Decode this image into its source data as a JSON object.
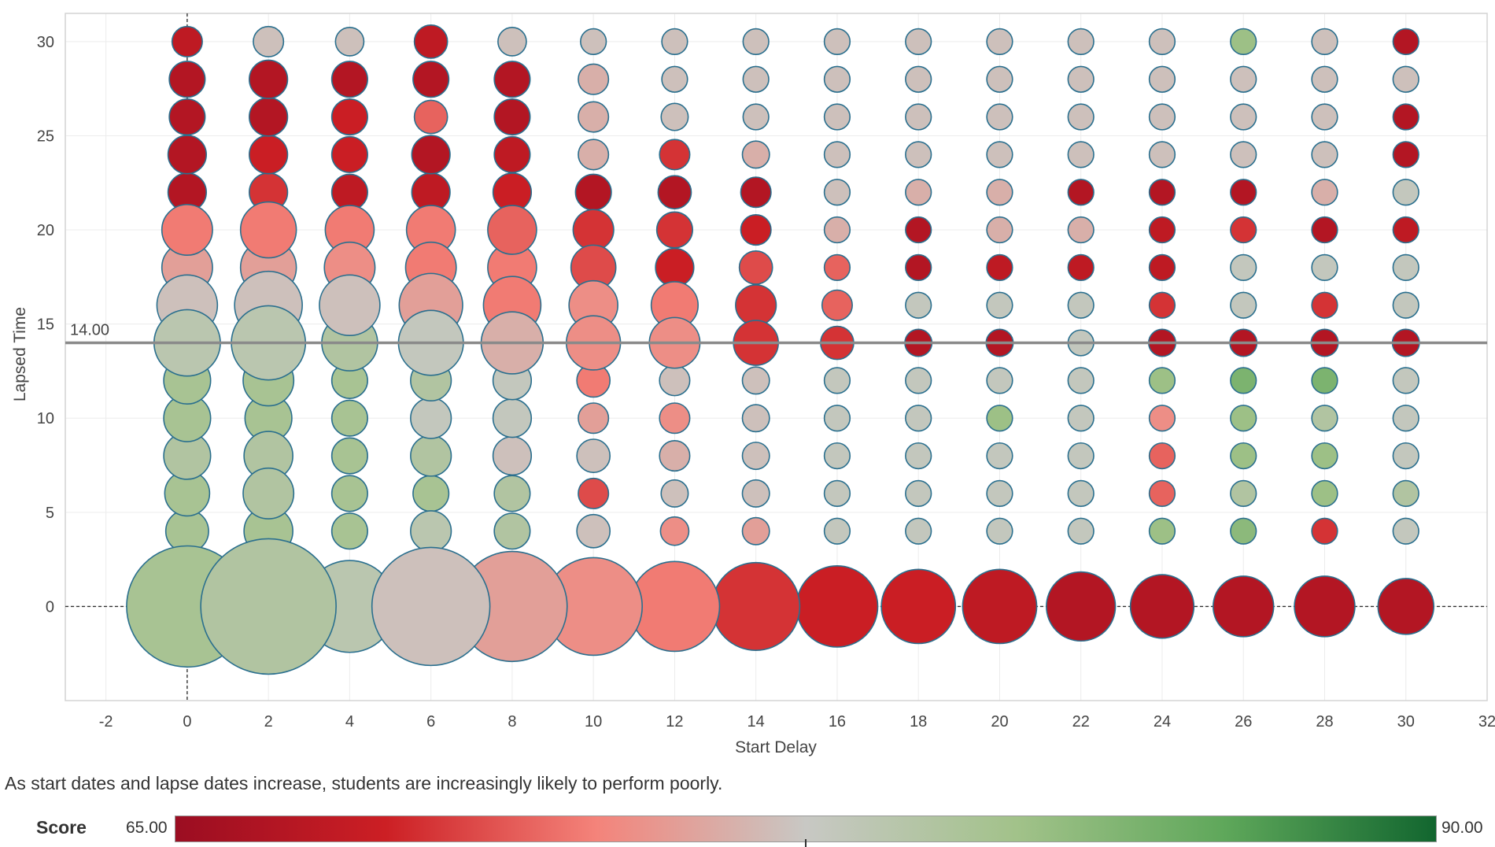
{
  "chart_data": {
    "type": "scatter",
    "subtype": "bubble",
    "xlabel": "Start Delay",
    "ylabel": "Lapsed Time",
    "xlim": [
      -3,
      32
    ],
    "ylim": [
      -5,
      31.5
    ],
    "x_ticks": [
      -2,
      0,
      2,
      4,
      6,
      8,
      10,
      12,
      14,
      16,
      18,
      20,
      22,
      24,
      26,
      28,
      30,
      32
    ],
    "y_ticks": [
      0,
      5,
      10,
      15,
      20,
      25,
      30
    ],
    "grid": true,
    "reference_line": {
      "axis": "y",
      "value": 14,
      "label": "14.00"
    },
    "zero_lines": {
      "x": 0,
      "y": 0,
      "style": "dashed"
    },
    "color": {
      "field": "Score",
      "min": 65,
      "max": 90,
      "stops": [
        "#9b0d22",
        "#cc1f24",
        "#f4837a",
        "#c8c8c4",
        "#a2c28a",
        "#5ea75a",
        "#12662f"
      ]
    },
    "size_field": "relative count (0-1)",
    "points_columns": [
      "start_delay",
      "lapsed_time",
      "score",
      "size"
    ],
    "points": [
      [
        0,
        0,
        81,
        0.4
      ],
      [
        2,
        0,
        80,
        0.5
      ],
      [
        4,
        0,
        79,
        0.23
      ],
      [
        6,
        0,
        77,
        0.38
      ],
      [
        8,
        0,
        75,
        0.33
      ],
      [
        10,
        0,
        74,
        0.26
      ],
      [
        12,
        0,
        73,
        0.22
      ],
      [
        14,
        0,
        70,
        0.21
      ],
      [
        16,
        0,
        69,
        0.18
      ],
      [
        18,
        0,
        69,
        0.15
      ],
      [
        20,
        0,
        68,
        0.15
      ],
      [
        22,
        0,
        67,
        0.13
      ],
      [
        24,
        0,
        67,
        0.11
      ],
      [
        26,
        0,
        67,
        0.1
      ],
      [
        28,
        0,
        67,
        0.1
      ],
      [
        30,
        0,
        67,
        0.085
      ],
      [
        0,
        4,
        81,
        0.05
      ],
      [
        2,
        4,
        81,
        0.065
      ],
      [
        4,
        4,
        81,
        0.035
      ],
      [
        6,
        4,
        79,
        0.045
      ],
      [
        8,
        4,
        80,
        0.035
      ],
      [
        10,
        4,
        77,
        0.03
      ],
      [
        12,
        4,
        74,
        0.022
      ],
      [
        14,
        4,
        75,
        0.02
      ],
      [
        16,
        4,
        78,
        0.018
      ],
      [
        18,
        4,
        78,
        0.018
      ],
      [
        20,
        4,
        78,
        0.018
      ],
      [
        22,
        4,
        78,
        0.018
      ],
      [
        24,
        4,
        82,
        0.018
      ],
      [
        26,
        4,
        83,
        0.018
      ],
      [
        28,
        4,
        70,
        0.018
      ],
      [
        30,
        4,
        78,
        0.018
      ],
      [
        0,
        6,
        81,
        0.055
      ],
      [
        2,
        6,
        80,
        0.07
      ],
      [
        4,
        6,
        81,
        0.035
      ],
      [
        6,
        6,
        81,
        0.035
      ],
      [
        8,
        6,
        80,
        0.035
      ],
      [
        10,
        6,
        71,
        0.025
      ],
      [
        12,
        6,
        77,
        0.02
      ],
      [
        14,
        6,
        77,
        0.02
      ],
      [
        16,
        6,
        78,
        0.018
      ],
      [
        18,
        6,
        78,
        0.018
      ],
      [
        20,
        6,
        78,
        0.018
      ],
      [
        22,
        6,
        78,
        0.018
      ],
      [
        24,
        6,
        72,
        0.018
      ],
      [
        26,
        6,
        80,
        0.018
      ],
      [
        28,
        6,
        82,
        0.018
      ],
      [
        30,
        6,
        80,
        0.018
      ],
      [
        0,
        8,
        80,
        0.06
      ],
      [
        2,
        8,
        80,
        0.065
      ],
      [
        4,
        8,
        81,
        0.035
      ],
      [
        6,
        8,
        80,
        0.045
      ],
      [
        8,
        8,
        77,
        0.04
      ],
      [
        10,
        8,
        77,
        0.03
      ],
      [
        12,
        8,
        76,
        0.025
      ],
      [
        14,
        8,
        77,
        0.02
      ],
      [
        16,
        8,
        78,
        0.018
      ],
      [
        18,
        8,
        78,
        0.018
      ],
      [
        20,
        8,
        78,
        0.018
      ],
      [
        22,
        8,
        78,
        0.018
      ],
      [
        24,
        8,
        72,
        0.018
      ],
      [
        26,
        8,
        82,
        0.018
      ],
      [
        28,
        8,
        82,
        0.018
      ],
      [
        30,
        8,
        78,
        0.018
      ],
      [
        0,
        10,
        81,
        0.06
      ],
      [
        2,
        10,
        81,
        0.06
      ],
      [
        4,
        10,
        81,
        0.035
      ],
      [
        6,
        10,
        78,
        0.045
      ],
      [
        8,
        10,
        78,
        0.04
      ],
      [
        10,
        10,
        75,
        0.025
      ],
      [
        12,
        10,
        74,
        0.025
      ],
      [
        14,
        10,
        77,
        0.02
      ],
      [
        16,
        10,
        78,
        0.018
      ],
      [
        18,
        10,
        78,
        0.018
      ],
      [
        20,
        10,
        82,
        0.018
      ],
      [
        22,
        10,
        78,
        0.018
      ],
      [
        24,
        10,
        74,
        0.018
      ],
      [
        26,
        10,
        82,
        0.018
      ],
      [
        28,
        10,
        80,
        0.018
      ],
      [
        30,
        10,
        78,
        0.018
      ],
      [
        0,
        12,
        81,
        0.06
      ],
      [
        2,
        12,
        81,
        0.07
      ],
      [
        4,
        12,
        81,
        0.035
      ],
      [
        6,
        12,
        80,
        0.045
      ],
      [
        8,
        12,
        78,
        0.04
      ],
      [
        10,
        12,
        73,
        0.03
      ],
      [
        12,
        12,
        77,
        0.025
      ],
      [
        14,
        12,
        77,
        0.02
      ],
      [
        16,
        12,
        78,
        0.018
      ],
      [
        18,
        12,
        78,
        0.018
      ],
      [
        20,
        12,
        78,
        0.018
      ],
      [
        22,
        12,
        78,
        0.018
      ],
      [
        24,
        12,
        82,
        0.018
      ],
      [
        26,
        12,
        84,
        0.018
      ],
      [
        28,
        12,
        84,
        0.018
      ],
      [
        30,
        12,
        78,
        0.018
      ],
      [
        0,
        14,
        79,
        0.12
      ],
      [
        2,
        14,
        79,
        0.15
      ],
      [
        4,
        14,
        80,
        0.085
      ],
      [
        6,
        14,
        78,
        0.115
      ],
      [
        8,
        14,
        76,
        0.105
      ],
      [
        10,
        14,
        74,
        0.08
      ],
      [
        12,
        14,
        74,
        0.07
      ],
      [
        14,
        14,
        70,
        0.055
      ],
      [
        16,
        14,
        70,
        0.03
      ],
      [
        18,
        14,
        67,
        0.02
      ],
      [
        20,
        14,
        67,
        0.02
      ],
      [
        22,
        14,
        78,
        0.018
      ],
      [
        24,
        14,
        67,
        0.02
      ],
      [
        26,
        14,
        67,
        0.02
      ],
      [
        28,
        14,
        67,
        0.02
      ],
      [
        30,
        14,
        67,
        0.02
      ],
      [
        0,
        16,
        77,
        0.1
      ],
      [
        2,
        16,
        77,
        0.125
      ],
      [
        4,
        16,
        77,
        0.1
      ],
      [
        6,
        16,
        75,
        0.11
      ],
      [
        8,
        16,
        73,
        0.09
      ],
      [
        10,
        16,
        74,
        0.065
      ],
      [
        12,
        16,
        73,
        0.06
      ],
      [
        14,
        16,
        70,
        0.045
      ],
      [
        16,
        16,
        72,
        0.025
      ],
      [
        18,
        16,
        78,
        0.018
      ],
      [
        20,
        16,
        78,
        0.018
      ],
      [
        22,
        16,
        78,
        0.018
      ],
      [
        24,
        16,
        70,
        0.018
      ],
      [
        26,
        16,
        78,
        0.018
      ],
      [
        28,
        16,
        70,
        0.018
      ],
      [
        30,
        16,
        78,
        0.018
      ],
      [
        0,
        18,
        75,
        0.07
      ],
      [
        2,
        18,
        75,
        0.085
      ],
      [
        4,
        18,
        74,
        0.07
      ],
      [
        6,
        18,
        73,
        0.07
      ],
      [
        8,
        18,
        73,
        0.065
      ],
      [
        10,
        18,
        71,
        0.055
      ],
      [
        12,
        18,
        69,
        0.04
      ],
      [
        14,
        18,
        71,
        0.03
      ],
      [
        16,
        18,
        72,
        0.018
      ],
      [
        18,
        18,
        67,
        0.018
      ],
      [
        20,
        18,
        68,
        0.018
      ],
      [
        22,
        18,
        68,
        0.018
      ],
      [
        24,
        18,
        68,
        0.018
      ],
      [
        26,
        18,
        78,
        0.018
      ],
      [
        28,
        18,
        78,
        0.018
      ],
      [
        30,
        18,
        78,
        0.018
      ],
      [
        0,
        20,
        73,
        0.07
      ],
      [
        2,
        20,
        73,
        0.085
      ],
      [
        4,
        20,
        73,
        0.065
      ],
      [
        6,
        20,
        73,
        0.065
      ],
      [
        8,
        20,
        72,
        0.065
      ],
      [
        10,
        20,
        70,
        0.045
      ],
      [
        12,
        20,
        70,
        0.035
      ],
      [
        14,
        20,
        69,
        0.025
      ],
      [
        16,
        20,
        76,
        0.018
      ],
      [
        18,
        20,
        67,
        0.018
      ],
      [
        20,
        20,
        76,
        0.018
      ],
      [
        22,
        20,
        76,
        0.018
      ],
      [
        24,
        20,
        68,
        0.018
      ],
      [
        26,
        20,
        70,
        0.018
      ],
      [
        28,
        20,
        67,
        0.018
      ],
      [
        30,
        20,
        68,
        0.018
      ],
      [
        0,
        22,
        67,
        0.04
      ],
      [
        2,
        22,
        70,
        0.04
      ],
      [
        4,
        22,
        68,
        0.035
      ],
      [
        6,
        22,
        68,
        0.04
      ],
      [
        8,
        22,
        69,
        0.04
      ],
      [
        10,
        22,
        67,
        0.035
      ],
      [
        12,
        22,
        67,
        0.03
      ],
      [
        14,
        22,
        67,
        0.025
      ],
      [
        16,
        22,
        77,
        0.018
      ],
      [
        18,
        22,
        76,
        0.018
      ],
      [
        20,
        22,
        76,
        0.018
      ],
      [
        22,
        22,
        67,
        0.018
      ],
      [
        24,
        22,
        67,
        0.018
      ],
      [
        26,
        22,
        67,
        0.018
      ],
      [
        28,
        22,
        76,
        0.018
      ],
      [
        30,
        22,
        78,
        0.018
      ],
      [
        0,
        24,
        67,
        0.04
      ],
      [
        2,
        24,
        69,
        0.04
      ],
      [
        4,
        24,
        69,
        0.035
      ],
      [
        6,
        24,
        67,
        0.04
      ],
      [
        8,
        24,
        68,
        0.035
      ],
      [
        10,
        24,
        76,
        0.025
      ],
      [
        12,
        24,
        70,
        0.025
      ],
      [
        14,
        24,
        76,
        0.02
      ],
      [
        16,
        24,
        77,
        0.018
      ],
      [
        18,
        24,
        77,
        0.018
      ],
      [
        20,
        24,
        77,
        0.018
      ],
      [
        22,
        24,
        77,
        0.018
      ],
      [
        24,
        24,
        77,
        0.018
      ],
      [
        26,
        24,
        77,
        0.018
      ],
      [
        28,
        24,
        77,
        0.018
      ],
      [
        30,
        24,
        67,
        0.018
      ],
      [
        0,
        26,
        67,
        0.035
      ],
      [
        2,
        26,
        67,
        0.04
      ],
      [
        4,
        26,
        69,
        0.035
      ],
      [
        6,
        26,
        72,
        0.03
      ],
      [
        8,
        26,
        67,
        0.035
      ],
      [
        10,
        26,
        76,
        0.025
      ],
      [
        12,
        26,
        77,
        0.02
      ],
      [
        14,
        26,
        77,
        0.018
      ],
      [
        16,
        26,
        77,
        0.018
      ],
      [
        18,
        26,
        77,
        0.018
      ],
      [
        20,
        26,
        77,
        0.018
      ],
      [
        22,
        26,
        77,
        0.018
      ],
      [
        24,
        26,
        77,
        0.018
      ],
      [
        26,
        26,
        77,
        0.018
      ],
      [
        28,
        26,
        77,
        0.018
      ],
      [
        30,
        26,
        67,
        0.018
      ],
      [
        0,
        28,
        67,
        0.035
      ],
      [
        2,
        28,
        67,
        0.04
      ],
      [
        4,
        28,
        67,
        0.035
      ],
      [
        6,
        28,
        67,
        0.035
      ],
      [
        8,
        28,
        67,
        0.035
      ],
      [
        10,
        28,
        76,
        0.025
      ],
      [
        12,
        28,
        77,
        0.018
      ],
      [
        14,
        28,
        77,
        0.018
      ],
      [
        16,
        28,
        77,
        0.018
      ],
      [
        18,
        28,
        77,
        0.018
      ],
      [
        20,
        28,
        77,
        0.018
      ],
      [
        22,
        28,
        77,
        0.018
      ],
      [
        24,
        28,
        77,
        0.018
      ],
      [
        26,
        28,
        77,
        0.018
      ],
      [
        28,
        28,
        77,
        0.018
      ],
      [
        30,
        28,
        77,
        0.018
      ],
      [
        0,
        30,
        68,
        0.025
      ],
      [
        2,
        30,
        77,
        0.025
      ],
      [
        4,
        30,
        77,
        0.022
      ],
      [
        6,
        30,
        68,
        0.03
      ],
      [
        8,
        30,
        77,
        0.022
      ],
      [
        10,
        30,
        77,
        0.018
      ],
      [
        12,
        30,
        77,
        0.018
      ],
      [
        14,
        30,
        77,
        0.018
      ],
      [
        16,
        30,
        77,
        0.018
      ],
      [
        18,
        30,
        77,
        0.018
      ],
      [
        20,
        30,
        77,
        0.018
      ],
      [
        22,
        30,
        77,
        0.018
      ],
      [
        24,
        30,
        77,
        0.018
      ],
      [
        26,
        30,
        82,
        0.018
      ],
      [
        28,
        30,
        77,
        0.018
      ],
      [
        30,
        30,
        67,
        0.018
      ]
    ]
  },
  "caption": "As start dates and lapse dates increase, students are increasingly likely to perform poorly.",
  "legend": {
    "title": "Score",
    "min_label": "65.00",
    "max_label": "90.00",
    "marker_value": 77.5
  }
}
